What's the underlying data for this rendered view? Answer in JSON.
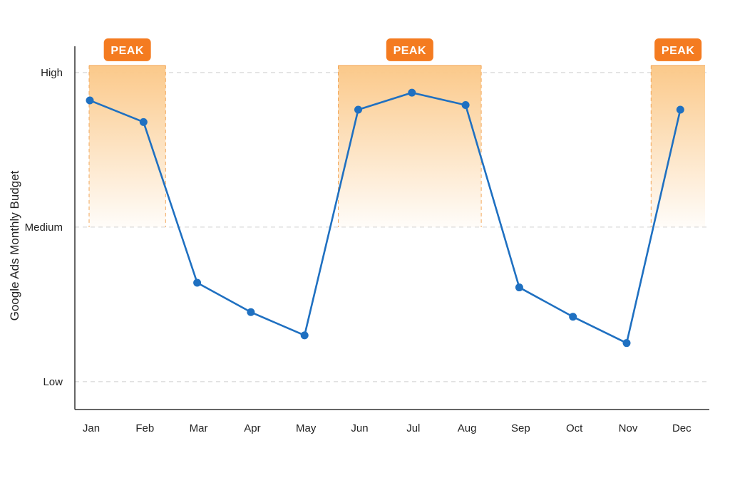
{
  "chart_data": {
    "type": "line",
    "title": "",
    "xlabel": "",
    "ylabel": "Google Ads Monthly Budget",
    "categories": [
      "Jan",
      "Feb",
      "Mar",
      "Apr",
      "May",
      "Jun",
      "Jul",
      "Aug",
      "Sep",
      "Oct",
      "Nov",
      "Dec"
    ],
    "y_tick_labels": [
      {
        "label": "Low",
        "value": 0
      },
      {
        "label": "Medium",
        "value": 1
      },
      {
        "label": "High",
        "value": 2
      }
    ],
    "ylim": [
      -0.18,
      2.17
    ],
    "series": [
      {
        "values": [
          1.82,
          1.68,
          0.64,
          0.45,
          0.3,
          1.76,
          1.87,
          1.79,
          0.61,
          0.42,
          0.25,
          1.76
        ]
      }
    ],
    "peak_bands": [
      {
        "label": "PEAK",
        "start": "Jan",
        "end": "Feb",
        "ymin": 1,
        "ymax": 2
      },
      {
        "label": "PEAK",
        "start": "Jun",
        "end": "Aug",
        "ymin": 1,
        "ymax": 2
      },
      {
        "label": "PEAK",
        "start": "Dec",
        "end": "Dec",
        "ymin": 1,
        "ymax": 2
      }
    ],
    "grid": {
      "horizontal": true,
      "style": "dashed"
    },
    "legend": "none",
    "colors": {
      "line": "#1f70c1",
      "band_top": "#fbc98a",
      "band_border": "#f2a65a",
      "peak_badge": "#f47b20",
      "grid": "#cfcfcf",
      "axis": "#333333"
    }
  }
}
